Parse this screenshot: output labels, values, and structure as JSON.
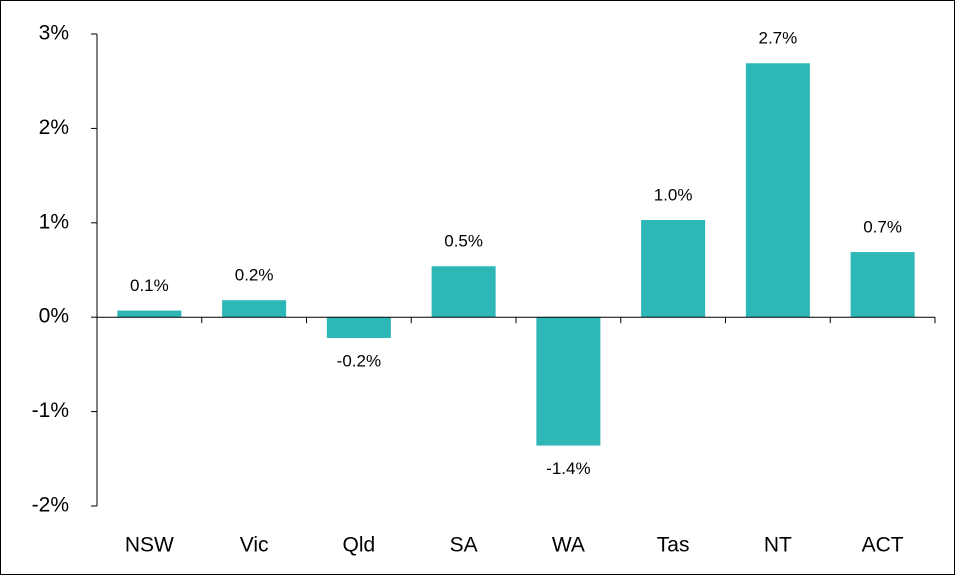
{
  "chart_data": {
    "type": "bar",
    "categories": [
      "NSW",
      "Vic",
      "Qld",
      "SA",
      "WA",
      "Tas",
      "NT",
      "ACT"
    ],
    "values": [
      0.07,
      0.18,
      -0.22,
      0.54,
      -1.36,
      1.03,
      2.69,
      0.69
    ],
    "value_labels": [
      "0.1%",
      "0.2%",
      "-0.2%",
      "0.5%",
      "-1.4%",
      "1.0%",
      "2.7%",
      "0.7%"
    ],
    "color": "#2db7b7",
    "ylim": [
      -2,
      3
    ],
    "yticks": [
      {
        "value": -2,
        "label": "-2%"
      },
      {
        "value": -1,
        "label": "-1%"
      },
      {
        "value": 0,
        "label": "0%"
      },
      {
        "value": 1,
        "label": "1%"
      },
      {
        "value": 2,
        "label": "2%"
      },
      {
        "value": 3,
        "label": "3%"
      }
    ],
    "grid": false
  }
}
